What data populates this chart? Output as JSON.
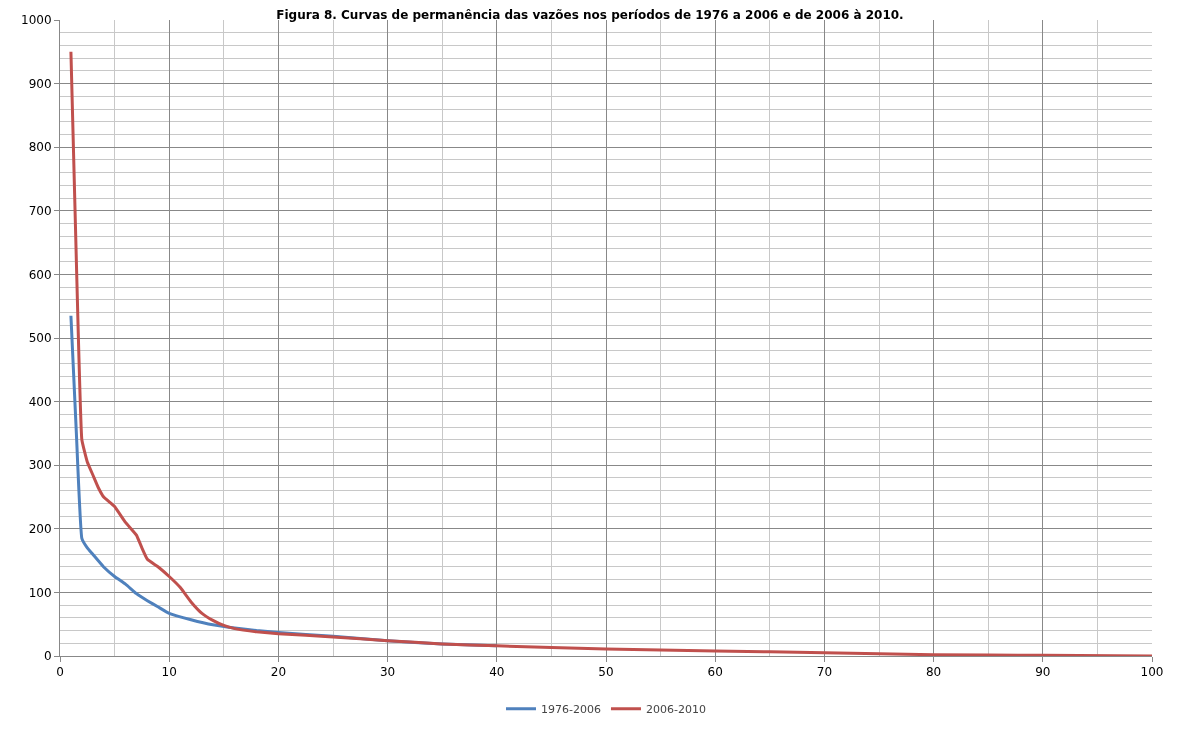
{
  "chart_data": {
    "type": "line",
    "title": "Figura 8. Curvas de permanência das vazões nos períodos de 1976 a 2006 e de 2006 à 2010.",
    "series": [
      {
        "name": "1976-2006",
        "color": "#4f81bd",
        "x": [
          1,
          1.5,
          2,
          2.5,
          3,
          4,
          5,
          6,
          7,
          8,
          9,
          10,
          12,
          14,
          16,
          18,
          20,
          25,
          30,
          35,
          40
        ],
        "values": [
          535,
          350,
          185,
          170,
          160,
          140,
          125,
          113,
          98,
          87,
          77,
          67,
          57,
          49,
          44,
          40,
          37,
          31,
          24,
          19,
          16
        ]
      },
      {
        "name": "2006-2010",
        "color": "#c0504d",
        "x": [
          1,
          1.5,
          2,
          2.5,
          3,
          3.5,
          4,
          5,
          6,
          7,
          7.5,
          8,
          9,
          10,
          11,
          12,
          13,
          14,
          15,
          16,
          18,
          20,
          25,
          30,
          35,
          40,
          50,
          60,
          70,
          80,
          90,
          100
        ],
        "values": [
          950,
          620,
          340,
          305,
          285,
          265,
          250,
          235,
          210,
          190,
          170,
          152,
          140,
          125,
          108,
          85,
          67,
          56,
          48,
          43,
          38,
          35,
          30,
          24,
          19,
          16,
          11,
          8,
          5,
          2,
          1,
          0
        ]
      }
    ],
    "xlim": [
      0,
      100
    ],
    "xticks": [
      0,
      10,
      20,
      30,
      40,
      50,
      60,
      70,
      80,
      90,
      100
    ],
    "ylim": [
      0,
      1000
    ],
    "yticks": [
      0,
      100,
      200,
      300,
      400,
      500,
      600,
      700,
      800,
      900,
      1000
    ],
    "grid": true,
    "legend": "bottom",
    "marker": "none",
    "line_style": "solid"
  }
}
